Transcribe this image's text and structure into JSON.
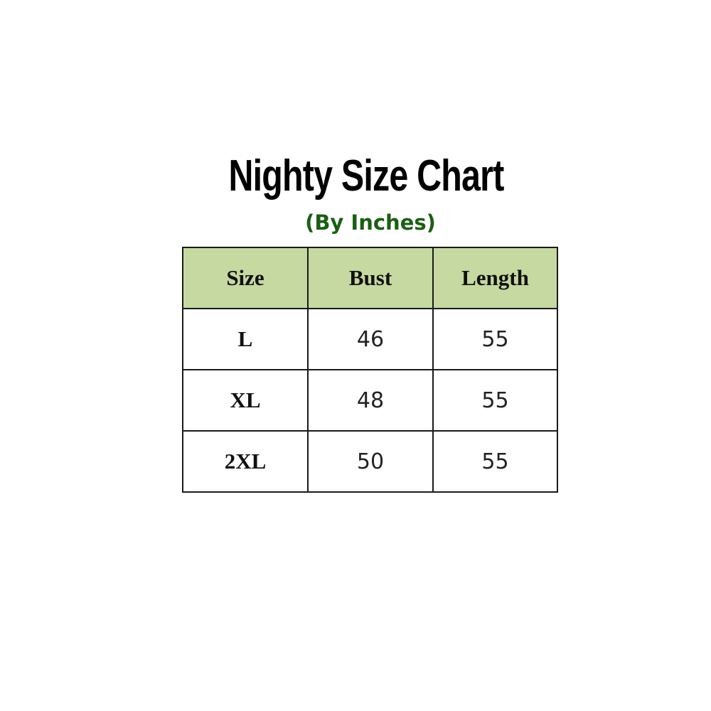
{
  "title": "Nighty Size Chart",
  "subtitle": "(By Inches)",
  "colors": {
    "header_bg": "#c5d9a0",
    "subtitle": "#1b5e14"
  },
  "chart_data": {
    "type": "table",
    "title": "Nighty Size Chart",
    "subtitle": "(By Inches)",
    "columns": [
      "Size",
      "Bust",
      "Length"
    ],
    "rows": [
      [
        "L",
        "46",
        "55"
      ],
      [
        "XL",
        "48",
        "55"
      ],
      [
        "2XL",
        "50",
        "55"
      ]
    ]
  }
}
